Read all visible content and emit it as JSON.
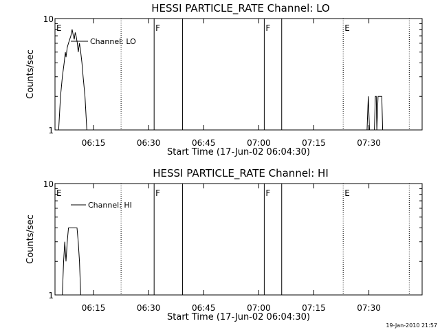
{
  "footer": {
    "timestamp": "19-Jan-2010 21:57"
  },
  "chart_data": [
    {
      "type": "line",
      "title": "HESSI PARTICLE_RATE Channel: LO",
      "xlabel": "Start Time (17-Jun-02 06:04:30)",
      "ylabel": "Counts/sec",
      "yscale": "log",
      "ylim": [
        1,
        10
      ],
      "y_ticks": [
        {
          "value": 1,
          "label": "1"
        },
        {
          "value": 10,
          "label": "10"
        }
      ],
      "xlim": [
        "06:04:30",
        "07:44:30"
      ],
      "x_ticks": [
        {
          "t": "06:15",
          "label": "06:15"
        },
        {
          "t": "06:30",
          "label": "06:30"
        },
        {
          "t": "06:45",
          "label": "06:45"
        },
        {
          "t": "07:00",
          "label": "07:00"
        },
        {
          "t": "07:15",
          "label": "07:15"
        },
        {
          "t": "07:30",
          "label": "07:30"
        }
      ],
      "legend": {
        "label": "Channel: LO",
        "position": "top-left"
      },
      "markers": [
        {
          "t": "06:04:30",
          "style": "dotted",
          "flag": "E"
        },
        {
          "t": "06:22:30",
          "style": "dotted",
          "flag": ""
        },
        {
          "t": "06:31:30",
          "style": "solid",
          "flag": "F"
        },
        {
          "t": "06:39:15",
          "style": "solid",
          "flag": ""
        },
        {
          "t": "07:01:30",
          "style": "solid",
          "flag": "F"
        },
        {
          "t": "07:06:15",
          "style": "solid",
          "flag": ""
        },
        {
          "t": "07:23:00",
          "style": "dotted",
          "flag": "E"
        },
        {
          "t": "07:41:00",
          "style": "dotted",
          "flag": ""
        }
      ],
      "series": [
        {
          "segments": [
            [
              [
                "06:05:30",
                1
              ],
              [
                "06:06:00",
                2
              ],
              [
                "06:06:30",
                3
              ],
              [
                "06:07:00",
                4
              ],
              [
                "06:07:20",
                5
              ],
              [
                "06:07:30",
                4.5
              ],
              [
                "06:07:50",
                5.5
              ],
              [
                "06:08:10",
                6
              ],
              [
                "06:08:30",
                6.5
              ],
              [
                "06:08:50",
                7
              ],
              [
                "06:09:10",
                8
              ],
              [
                "06:09:30",
                7
              ],
              [
                "06:09:45",
                6.5
              ],
              [
                "06:10:00",
                7.5
              ],
              [
                "06:10:15",
                7
              ],
              [
                "06:10:35",
                6
              ],
              [
                "06:10:50",
                5
              ],
              [
                "06:11:10",
                6
              ],
              [
                "06:11:30",
                5
              ],
              [
                "06:11:50",
                4
              ],
              [
                "06:12:10",
                3
              ],
              [
                "06:12:40",
                2
              ],
              [
                "06:13:10",
                1
              ]
            ],
            [
              [
                "07:29:30",
                1
              ],
              [
                "07:29:50",
                2
              ],
              [
                "07:30:10",
                1
              ],
              [
                "07:31:30",
                1
              ],
              [
                "07:31:45",
                2
              ],
              [
                "07:32:00",
                2
              ],
              [
                "07:32:10",
                1
              ],
              [
                "07:32:30",
                2
              ],
              [
                "07:33:30",
                2
              ],
              [
                "07:33:45",
                1
              ]
            ]
          ]
        }
      ]
    },
    {
      "type": "line",
      "title": "HESSI PARTICLE_RATE Channel: HI",
      "xlabel": "Start Time (17-Jun-02 06:04:30)",
      "ylabel": "Counts/sec",
      "yscale": "log",
      "ylim": [
        1,
        10
      ],
      "y_ticks": [
        {
          "value": 1,
          "label": "1"
        },
        {
          "value": 10,
          "label": "10"
        }
      ],
      "xlim": [
        "06:04:30",
        "07:44:30"
      ],
      "x_ticks": [
        {
          "t": "06:15",
          "label": "06:15"
        },
        {
          "t": "06:30",
          "label": "06:30"
        },
        {
          "t": "06:45",
          "label": "06:45"
        },
        {
          "t": "07:00",
          "label": "07:00"
        },
        {
          "t": "07:15",
          "label": "07:15"
        },
        {
          "t": "07:30",
          "label": "07:30"
        }
      ],
      "legend": {
        "label": "Channel: HI",
        "position": "top-left"
      },
      "markers": [
        {
          "t": "06:04:30",
          "style": "dotted",
          "flag": "E"
        },
        {
          "t": "06:22:30",
          "style": "dotted",
          "flag": ""
        },
        {
          "t": "06:31:30",
          "style": "solid",
          "flag": "F"
        },
        {
          "t": "06:39:15",
          "style": "solid",
          "flag": ""
        },
        {
          "t": "07:01:30",
          "style": "solid",
          "flag": "F"
        },
        {
          "t": "07:06:15",
          "style": "solid",
          "flag": ""
        },
        {
          "t": "07:23:00",
          "style": "dotted",
          "flag": "E"
        },
        {
          "t": "07:41:00",
          "style": "dotted",
          "flag": ""
        }
      ],
      "series": [
        {
          "segments": [
            [
              [
                "06:06:30",
                1
              ],
              [
                "06:06:50",
                2
              ],
              [
                "06:07:10",
                3
              ],
              [
                "06:07:30",
                2
              ],
              [
                "06:07:50",
                3
              ],
              [
                "06:08:10",
                4
              ],
              [
                "06:10:30",
                4
              ],
              [
                "06:10:50",
                3
              ],
              [
                "06:11:10",
                2
              ],
              [
                "06:11:30",
                1
              ]
            ]
          ]
        }
      ]
    }
  ]
}
